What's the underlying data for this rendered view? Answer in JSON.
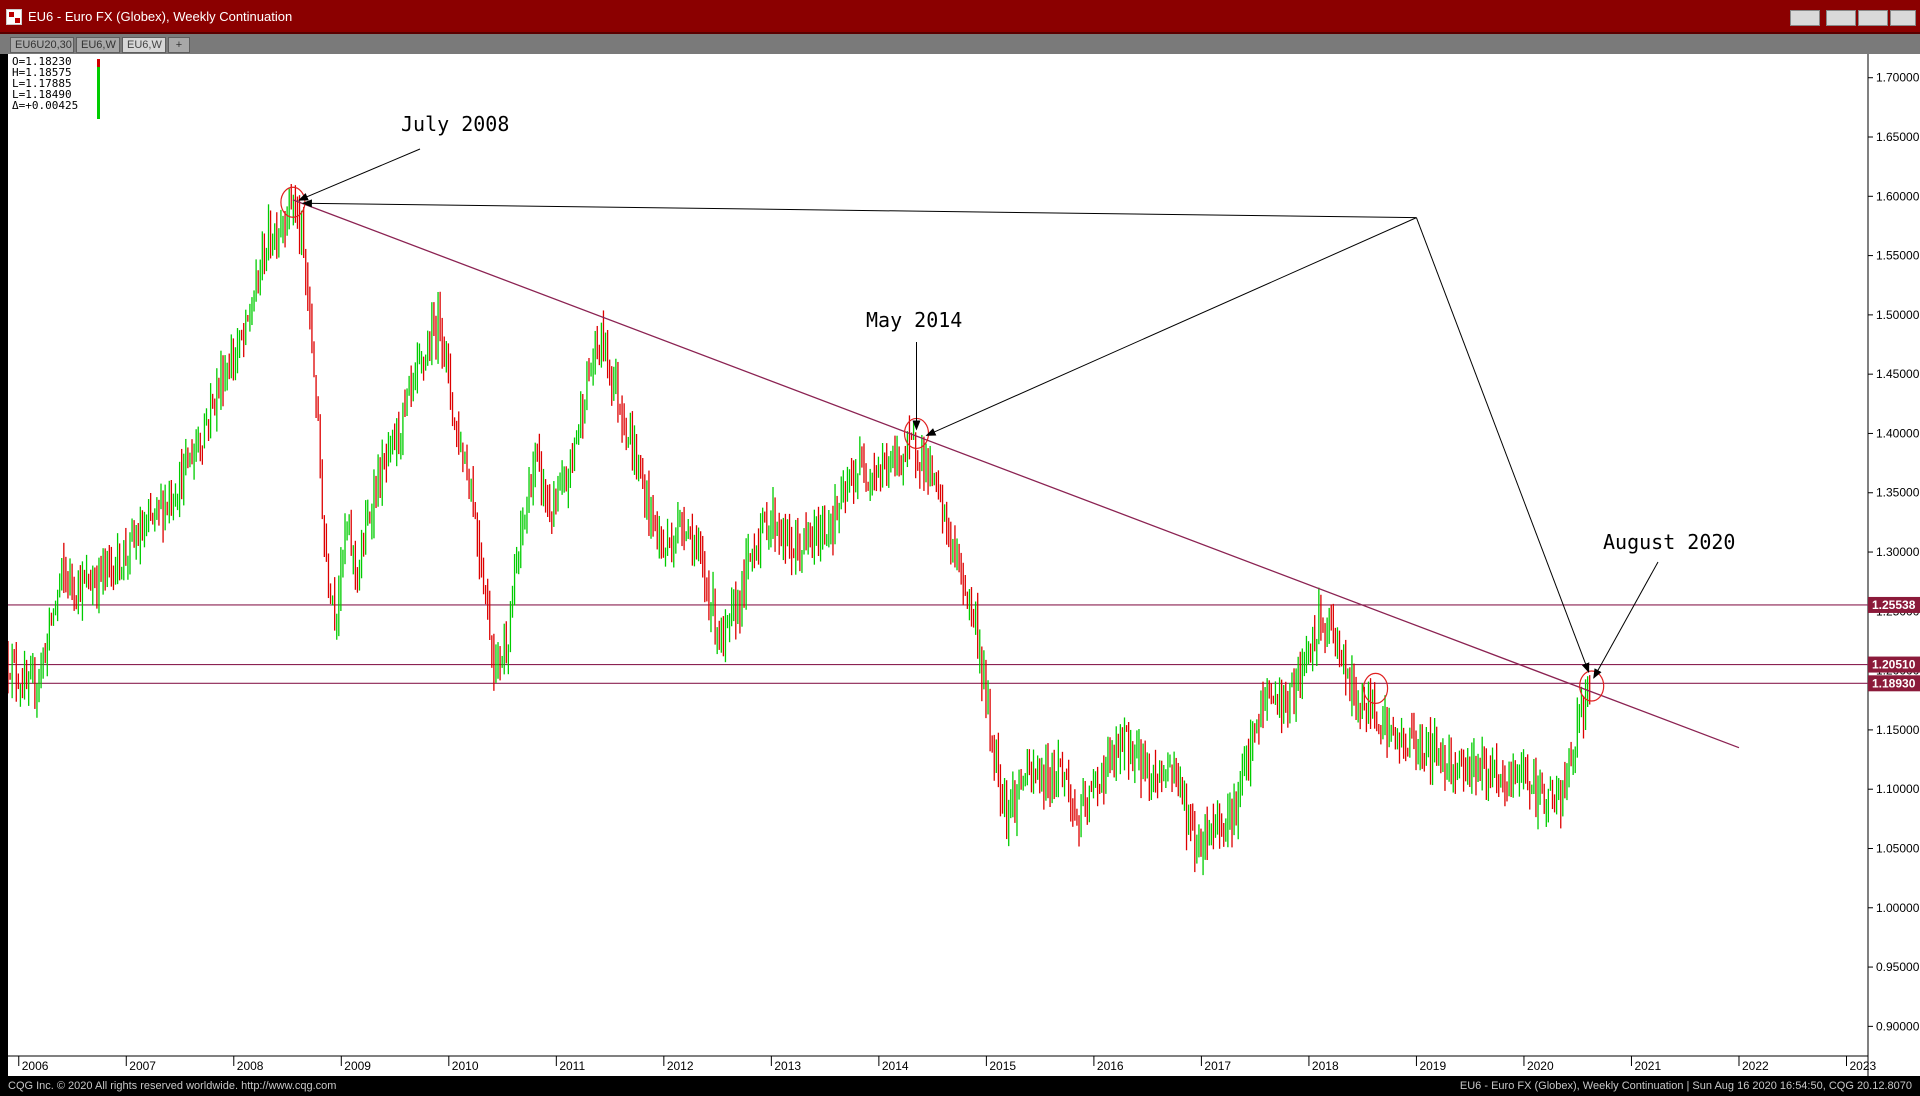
{
  "window": {
    "title": "EU6 - Euro FX (Globex), Weekly Continuation",
    "tabs": [
      {
        "label": "EU6U20,30"
      },
      {
        "label": "EU6,W"
      },
      {
        "label": "EU6,W"
      },
      {
        "label": "+"
      }
    ]
  },
  "ohlc_readout": {
    "open": "O=1.18230",
    "high": "H=1.18575",
    "low": "L=1.17885",
    "last": "L=1.18490",
    "change": "Δ=+0.00425"
  },
  "status": {
    "left": "CQG Inc. © 2020 All rights reserved worldwide. http://www.cqg.com",
    "right": "EU6 - Euro FX (Globex), Weekly Continuation | Sun Aug 16 2020 16:54:50, CQG 20.12.8070"
  },
  "colors": {
    "up_bar": "#00cc00",
    "down_bar": "#dd0000",
    "trendline": "#8b2252",
    "level_line": "#8b2252",
    "level_tag": "#8b1a3a",
    "annotation_circle": "#e02020",
    "arrow": "#000000",
    "titlebar": "#8b0000"
  },
  "chart_data": {
    "type": "ohlc",
    "title": "EU6 - Euro FX (Globex), Weekly Continuation",
    "xlabel": "",
    "ylabel": "",
    "ylim": [
      0.875,
      1.72
    ],
    "xlim": [
      2005.9,
      2023.2
    ],
    "x_ticks": [
      "2006",
      "2007",
      "2008",
      "2009",
      "2010",
      "2011",
      "2012",
      "2013",
      "2014",
      "2015",
      "2016",
      "2017",
      "2018",
      "2019",
      "2020",
      "2021",
      "2022",
      "2023"
    ],
    "y_ticks": [
      "1.70000",
      "1.65000",
      "1.60000",
      "1.55000",
      "1.50000",
      "1.45000",
      "1.40000",
      "1.35000",
      "1.30000",
      "1.25000",
      "1.20000",
      "1.15000",
      "1.10000",
      "1.05000",
      "1.00000",
      "0.95000",
      "0.90000"
    ],
    "grid": false,
    "price_path": [
      [
        2005.9,
        1.21
      ],
      [
        2006.1,
        1.18
      ],
      [
        2006.2,
        1.2
      ],
      [
        2006.4,
        1.28
      ],
      [
        2006.6,
        1.27
      ],
      [
        2006.9,
        1.29
      ],
      [
        2007.2,
        1.32
      ],
      [
        2007.5,
        1.36
      ],
      [
        2007.7,
        1.4
      ],
      [
        2007.9,
        1.45
      ],
      [
        2008.1,
        1.48
      ],
      [
        2008.3,
        1.56
      ],
      [
        2008.45,
        1.58
      ],
      [
        2008.55,
        1.6
      ],
      [
        2008.65,
        1.55
      ],
      [
        2008.75,
        1.45
      ],
      [
        2008.85,
        1.3
      ],
      [
        2008.95,
        1.25
      ],
      [
        2009.05,
        1.32
      ],
      [
        2009.15,
        1.28
      ],
      [
        2009.3,
        1.35
      ],
      [
        2009.45,
        1.38
      ],
      [
        2009.6,
        1.42
      ],
      [
        2009.8,
        1.47
      ],
      [
        2009.92,
        1.5
      ],
      [
        2010.05,
        1.41
      ],
      [
        2010.2,
        1.36
      ],
      [
        2010.35,
        1.26
      ],
      [
        2010.43,
        1.2
      ],
      [
        2010.55,
        1.23
      ],
      [
        2010.65,
        1.3
      ],
      [
        2010.8,
        1.38
      ],
      [
        2010.95,
        1.33
      ],
      [
        2011.1,
        1.36
      ],
      [
        2011.3,
        1.45
      ],
      [
        2011.42,
        1.48
      ],
      [
        2011.55,
        1.44
      ],
      [
        2011.7,
        1.39
      ],
      [
        2011.85,
        1.34
      ],
      [
        2012.0,
        1.3
      ],
      [
        2012.2,
        1.33
      ],
      [
        2012.4,
        1.27
      ],
      [
        2012.55,
        1.22
      ],
      [
        2012.7,
        1.26
      ],
      [
        2012.85,
        1.31
      ],
      [
        2013.0,
        1.33
      ],
      [
        2013.2,
        1.3
      ],
      [
        2013.4,
        1.31
      ],
      [
        2013.6,
        1.33
      ],
      [
        2013.8,
        1.37
      ],
      [
        2014.05,
        1.37
      ],
      [
        2014.35,
        1.39
      ],
      [
        2014.5,
        1.36
      ],
      [
        2014.7,
        1.3
      ],
      [
        2014.9,
        1.24
      ],
      [
        2015.05,
        1.14
      ],
      [
        2015.2,
        1.08
      ],
      [
        2015.35,
        1.11
      ],
      [
        2015.55,
        1.11
      ],
      [
        2015.7,
        1.12
      ],
      [
        2015.85,
        1.07
      ],
      [
        2016.05,
        1.11
      ],
      [
        2016.3,
        1.14
      ],
      [
        2016.55,
        1.11
      ],
      [
        2016.75,
        1.12
      ],
      [
        2016.95,
        1.05
      ],
      [
        2017.1,
        1.07
      ],
      [
        2017.3,
        1.08
      ],
      [
        2017.45,
        1.13
      ],
      [
        2017.6,
        1.18
      ],
      [
        2017.8,
        1.17
      ],
      [
        2017.95,
        1.2
      ],
      [
        2018.1,
        1.24
      ],
      [
        2018.25,
        1.23
      ],
      [
        2018.35,
        1.19
      ],
      [
        2018.5,
        1.17
      ],
      [
        2018.62,
        1.17
      ],
      [
        2018.8,
        1.14
      ],
      [
        2019.0,
        1.14
      ],
      [
        2019.2,
        1.13
      ],
      [
        2019.4,
        1.12
      ],
      [
        2019.6,
        1.12
      ],
      [
        2019.8,
        1.1
      ],
      [
        2020.0,
        1.12
      ],
      [
        2020.12,
        1.09
      ],
      [
        2020.2,
        1.1
      ],
      [
        2020.28,
        1.09
      ],
      [
        2020.35,
        1.09
      ],
      [
        2020.45,
        1.13
      ],
      [
        2020.55,
        1.17
      ],
      [
        2020.63,
        1.185
      ]
    ],
    "horizontal_levels": [
      {
        "label": "1.25538",
        "value": 1.25538
      },
      {
        "label": "1.20510",
        "value": 1.2051
      },
      {
        "label": "1.18930",
        "value": 1.1893
      }
    ],
    "trendline": {
      "from": [
        2008.55,
        1.597
      ],
      "to": [
        2022.0,
        1.135
      ]
    },
    "annotations": [
      {
        "text": "July 2008",
        "x": 2008.55,
        "y": 1.595
      },
      {
        "text": "May 2014",
        "x": 2014.35,
        "y": 1.4
      },
      {
        "text": "August 2020",
        "x": 2020.63,
        "y": 1.187
      }
    ],
    "extra_circle": {
      "x": 2018.62,
      "y": 1.185
    },
    "arrow_hub": {
      "x": 2019.0,
      "y": 1.582
    }
  }
}
